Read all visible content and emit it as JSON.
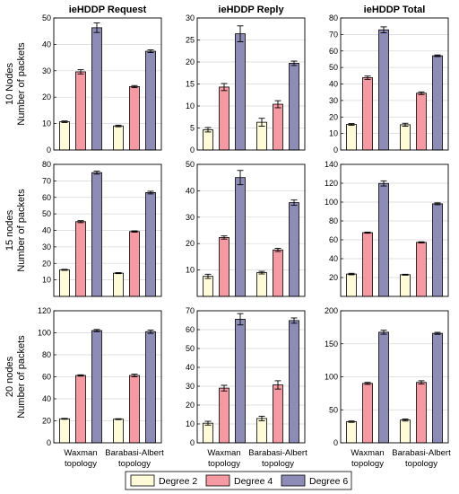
{
  "colors": {
    "degree2": "#fffbd8",
    "degree4": "#f59aa3",
    "degree6": "#8c8cb6",
    "edge": "#000000",
    "grid": "#d9d9d9"
  },
  "chart_data": [
    {
      "type": "bar",
      "title": "ieHDDP Request",
      "row_label": "10 Nodes",
      "ylabel": "Number of packets",
      "ylim": [
        0,
        50
      ],
      "yticks": [
        0,
        10,
        20,
        30,
        40,
        50
      ],
      "categories": [
        "Waxman\ntopology",
        "Barabasi-Albert\ntopology"
      ],
      "series": [
        {
          "name": "Degree 2",
          "values": [
            10.7,
            9.1
          ],
          "err": [
            0.3,
            0.3
          ]
        },
        {
          "name": "Degree 4",
          "values": [
            29.6,
            24.0
          ],
          "err": [
            0.8,
            0.4
          ]
        },
        {
          "name": "Degree 6",
          "values": [
            46.3,
            37.4
          ],
          "err": [
            1.8,
            0.5
          ]
        }
      ]
    },
    {
      "type": "bar",
      "title": "ieHDDP Reply",
      "row_label": "10 Nodes",
      "ylabel": "",
      "ylim": [
        0,
        30
      ],
      "yticks": [
        0,
        5,
        10,
        15,
        20,
        25,
        30
      ],
      "categories": [
        "Waxman\ntopology",
        "Barabasi-Albert\ntopology"
      ],
      "series": [
        {
          "name": "Degree 2",
          "values": [
            4.6,
            6.3
          ],
          "err": [
            0.5,
            0.9
          ]
        },
        {
          "name": "Degree 4",
          "values": [
            14.3,
            10.4
          ],
          "err": [
            0.8,
            0.8
          ]
        },
        {
          "name": "Degree 6",
          "values": [
            26.4,
            19.7
          ],
          "err": [
            1.8,
            0.5
          ]
        }
      ]
    },
    {
      "type": "bar",
      "title": "ieHDDP Total",
      "row_label": "10 Nodes",
      "ylabel": "",
      "ylim": [
        0,
        80
      ],
      "yticks": [
        0,
        10,
        20,
        30,
        40,
        50,
        60,
        70,
        80
      ],
      "categories": [
        "Waxman\ntopology",
        "Barabasi-Albert\ntopology"
      ],
      "series": [
        {
          "name": "Degree 2",
          "values": [
            15.5,
            15.3
          ],
          "err": [
            0.5,
            0.9
          ]
        },
        {
          "name": "Degree 4",
          "values": [
            43.8,
            34.4
          ],
          "err": [
            1.0,
            0.8
          ]
        },
        {
          "name": "Degree 6",
          "values": [
            72.8,
            57.1
          ],
          "err": [
            1.8,
            0.5
          ]
        }
      ]
    },
    {
      "type": "bar",
      "title": "",
      "row_label": "15 nodes",
      "ylabel": "Number of packets",
      "ylim": [
        0,
        80
      ],
      "yticks": [
        10,
        20,
        30,
        40,
        50,
        60,
        70,
        80
      ],
      "categories": [
        "Waxman\ntopology",
        "Barabasi-Albert\ntopology"
      ],
      "series": [
        {
          "name": "Degree 2",
          "values": [
            16.1,
            14.1
          ],
          "err": [
            0.3,
            0.3
          ]
        },
        {
          "name": "Degree 4",
          "values": [
            45.3,
            39.3
          ],
          "err": [
            0.6,
            0.4
          ]
        },
        {
          "name": "Degree 6",
          "values": [
            75.0,
            62.9
          ],
          "err": [
            0.9,
            0.8
          ]
        }
      ]
    },
    {
      "type": "bar",
      "title": "",
      "row_label": "15 nodes",
      "ylabel": "",
      "ylim": [
        0,
        50
      ],
      "yticks": [
        10,
        20,
        30,
        40,
        50
      ],
      "categories": [
        "Waxman\ntopology",
        "Barabasi-Albert\ntopology"
      ],
      "series": [
        {
          "name": "Degree 2",
          "values": [
            7.6,
            9.0
          ],
          "err": [
            0.8,
            0.5
          ]
        },
        {
          "name": "Degree 4",
          "values": [
            22.3,
            17.6
          ],
          "err": [
            0.6,
            0.6
          ]
        },
        {
          "name": "Degree 6",
          "values": [
            45.0,
            35.5
          ],
          "err": [
            2.7,
            1.0
          ]
        }
      ]
    },
    {
      "type": "bar",
      "title": "",
      "row_label": "15 nodes",
      "ylabel": "",
      "ylim": [
        0,
        140
      ],
      "yticks": [
        20,
        40,
        60,
        80,
        100,
        120,
        140
      ],
      "categories": [
        "Waxman\ntopology",
        "Barabasi-Albert\ntopology"
      ],
      "series": [
        {
          "name": "Degree 2",
          "values": [
            23.7,
            23.0
          ],
          "err": [
            0.8,
            0.5
          ]
        },
        {
          "name": "Degree 4",
          "values": [
            67.6,
            57.3
          ],
          "err": [
            0.6,
            0.6
          ]
        },
        {
          "name": "Degree 6",
          "values": [
            119.8,
            98.2
          ],
          "err": [
            2.7,
            1.0
          ]
        }
      ]
    },
    {
      "type": "bar",
      "title": "",
      "row_label": "20 nodes",
      "ylabel": "Number of packets",
      "ylim": [
        0,
        120
      ],
      "yticks": [
        0,
        20,
        40,
        60,
        80,
        100,
        120
      ],
      "categories": [
        "Waxman\ntopology",
        "Barabasi-Albert\ntopology"
      ],
      "series": [
        {
          "name": "Degree 2",
          "values": [
            21.8,
            21.5
          ],
          "err": [
            0.4,
            0.4
          ]
        },
        {
          "name": "Degree 4",
          "values": [
            61.2,
            61.2
          ],
          "err": [
            0.6,
            1.2
          ]
        },
        {
          "name": "Degree 6",
          "values": [
            102.0,
            101.0
          ],
          "err": [
            1.0,
            1.5
          ]
        }
      ]
    },
    {
      "type": "bar",
      "title": "",
      "row_label": "20 nodes",
      "ylabel": "",
      "ylim": [
        0,
        70
      ],
      "yticks": [
        0,
        10,
        20,
        30,
        40,
        50,
        60,
        70
      ],
      "categories": [
        "Waxman\ntopology",
        "Barabasi-Albert\ntopology"
      ],
      "series": [
        {
          "name": "Degree 2",
          "values": [
            10.4,
            12.9
          ],
          "err": [
            1.0,
            1.2
          ]
        },
        {
          "name": "Degree 4",
          "values": [
            29.0,
            30.7
          ],
          "err": [
            1.5,
            2.2
          ]
        },
        {
          "name": "Degree 6",
          "values": [
            65.5,
            64.8
          ],
          "err": [
            3.0,
            1.4
          ]
        }
      ]
    },
    {
      "type": "bar",
      "title": "",
      "row_label": "20 nodes",
      "ylabel": "",
      "ylim": [
        0,
        200
      ],
      "yticks": [
        0,
        50,
        100,
        150,
        200
      ],
      "categories": [
        "Waxman\ntopology",
        "Barabasi-Albert\ntopology"
      ],
      "series": [
        {
          "name": "Degree 2",
          "values": [
            32.0,
            34.5
          ],
          "err": [
            1.0,
            1.5
          ]
        },
        {
          "name": "Degree 4",
          "values": [
            90.0,
            91.5
          ],
          "err": [
            1.5,
            2.5
          ]
        },
        {
          "name": "Degree 6",
          "values": [
            167.5,
            165.8
          ],
          "err": [
            3.0,
            1.5
          ]
        }
      ]
    }
  ],
  "legend": {
    "placement": "bottom-center",
    "items": [
      "Degree 2",
      "Degree 4",
      "Degree 6"
    ]
  }
}
